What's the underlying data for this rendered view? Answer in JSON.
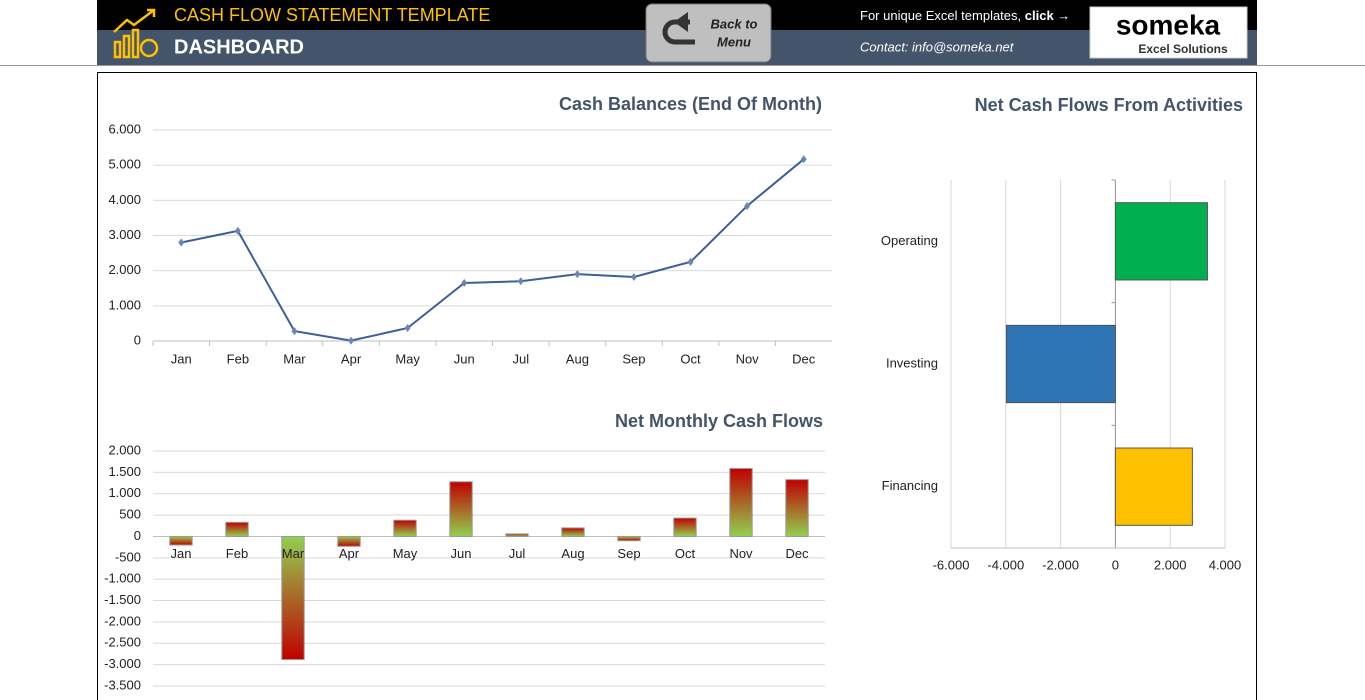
{
  "header": {
    "title": "CASH FLOW STATEMENT TEMPLATE",
    "subtitle": "DASHBOARD",
    "button": [
      "Back to",
      "Menu"
    ],
    "promo": "For unique Excel templates,",
    "promo_link": "click →",
    "contact": "Contact: info@someka.net",
    "logo": "someka",
    "logo_sub": "Excel Solutions"
  },
  "chart_data": [
    {
      "type": "line",
      "title": "Cash Balances (End Of Month)",
      "color": "#3c5f9c",
      "grid": true,
      "categories": [
        "Jan",
        "Feb",
        "Mar",
        "Apr",
        "May",
        "Jun",
        "Jul",
        "Aug",
        "Sep",
        "Oct",
        "Nov",
        "Dec"
      ],
      "values": [
        2800,
        3130,
        280,
        10,
        370,
        1650,
        1700,
        1900,
        1820,
        2250,
        3840,
        5170
      ],
      "ylim": [
        0,
        6000
      ],
      "yticks": [
        0,
        {
          "value": 1000,
          "label": "1.000"
        },
        {
          "value": 2000,
          "label": "2.000"
        },
        {
          "value": 3000,
          "label": "3.000"
        },
        {
          "value": 4000,
          "label": "4.000"
        },
        {
          "value": 5000,
          "label": "5.000"
        },
        {
          "value": 6000,
          "label": "6.000"
        }
      ]
    },
    {
      "type": "bar",
      "title": "Net Monthly Cash Flows",
      "colors": [
        "#c00000",
        "#92d050"
      ],
      "grid": true,
      "categories": [
        "Jan",
        "Feb",
        "Mar",
        "Apr",
        "May",
        "Jun",
        "Jul",
        "Aug",
        "Sep",
        "Oct",
        "Nov",
        "Dec"
      ],
      "values": [
        -200,
        330,
        -2880,
        -230,
        380,
        1280,
        60,
        200,
        -100,
        430,
        1590,
        1330
      ],
      "ylim": [
        -3500,
        2000
      ],
      "yticks": [
        {
          "value": -3500,
          "label": "-3.500"
        },
        {
          "value": -3000,
          "label": "-3.000"
        },
        {
          "value": -2500,
          "label": "-2.500"
        },
        {
          "value": -2000,
          "label": "-2.000"
        },
        {
          "value": -1500,
          "label": "-1.500"
        },
        {
          "value": -1000,
          "label": "-1.000"
        },
        -500,
        0,
        500,
        {
          "value": 1000,
          "label": "1.000"
        },
        {
          "value": 1500,
          "label": "1.500"
        },
        {
          "value": 2000,
          "label": "2.000"
        }
      ]
    },
    {
      "type": "barh",
      "title": "Net Cash Flows From Activities",
      "colors": [
        "#00b050",
        "#2e75b6",
        "#ffc000"
      ],
      "grid": true,
      "categories": [
        "Operating",
        "Investing",
        "Financing"
      ],
      "values": [
        3360,
        -3980,
        2810
      ],
      "xlim": [
        -6000,
        4000
      ],
      "xticks": [
        {
          "value": -6000,
          "label": "-6.000"
        },
        {
          "value": -4000,
          "label": "-4.000"
        },
        {
          "value": -2000,
          "label": "-2.000"
        },
        0,
        {
          "value": 2000,
          "label": "2.000"
        },
        {
          "value": 4000,
          "label": "4.000"
        }
      ]
    }
  ]
}
